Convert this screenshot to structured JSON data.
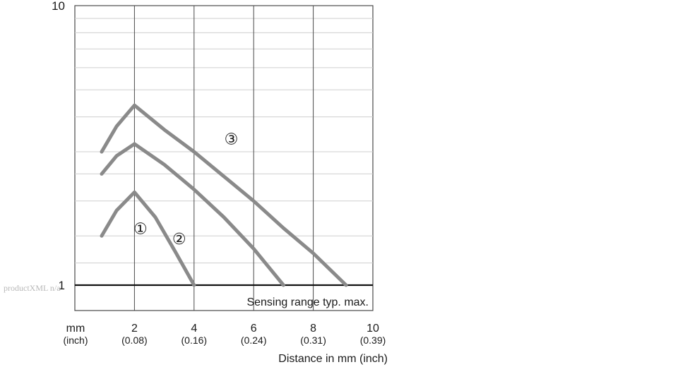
{
  "chart_data": {
    "type": "line",
    "xlabel": "Distance in mm (inch)",
    "x_unit_label": "mm",
    "x_alt_unit_label": "(inch)",
    "xlim": [
      0,
      10
    ],
    "ylim": [
      1,
      10
    ],
    "yscale": "log",
    "grid": true,
    "x_ticks": [
      {
        "mm": "2",
        "inch": "(0.08)",
        "value": 2
      },
      {
        "mm": "4",
        "inch": "(0.16)",
        "value": 4
      },
      {
        "mm": "6",
        "inch": "(0.24)",
        "value": 6
      },
      {
        "mm": "8",
        "inch": "(0.31)",
        "value": 8
      },
      {
        "mm": "10",
        "inch": "(0.39)",
        "value": 10
      }
    ],
    "y_ticks": [
      {
        "label": "10",
        "value": 10
      },
      {
        "label": "1",
        "value": 1
      }
    ],
    "y_minor_gridlines": [
      1.2,
      1.5,
      2,
      2.5,
      3,
      4,
      5,
      6,
      7,
      8,
      9
    ],
    "annotation": "Sensing range typ. max.",
    "series": [
      {
        "name": "①",
        "color": "#8a8a8a",
        "x": [
          0.9,
          1.4,
          2,
          2.7,
          3.4,
          4
        ],
        "y": [
          1.5,
          1.85,
          2.15,
          1.75,
          1.3,
          1
        ]
      },
      {
        "name": "②",
        "color": "#8a8a8a",
        "x": [
          0.9,
          1.4,
          2,
          3,
          4,
          5,
          6,
          7
        ],
        "y": [
          2.5,
          2.9,
          3.2,
          2.7,
          2.2,
          1.75,
          1.35,
          1
        ]
      },
      {
        "name": "③",
        "color": "#8a8a8a",
        "x": [
          0.9,
          1.4,
          2,
          3,
          4,
          5,
          6,
          7,
          8,
          9.1
        ],
        "y": [
          3,
          3.7,
          4.4,
          3.6,
          3,
          2.45,
          2,
          1.6,
          1.3,
          1
        ]
      }
    ],
    "series_label_positions": [
      {
        "name": "①",
        "x": 2.2,
        "y": 1.58
      },
      {
        "name": "②",
        "x": 3.5,
        "y": 1.45
      },
      {
        "name": "③",
        "x": 5.25,
        "y": 3.3
      }
    ]
  },
  "watermark": "productXML n/a"
}
